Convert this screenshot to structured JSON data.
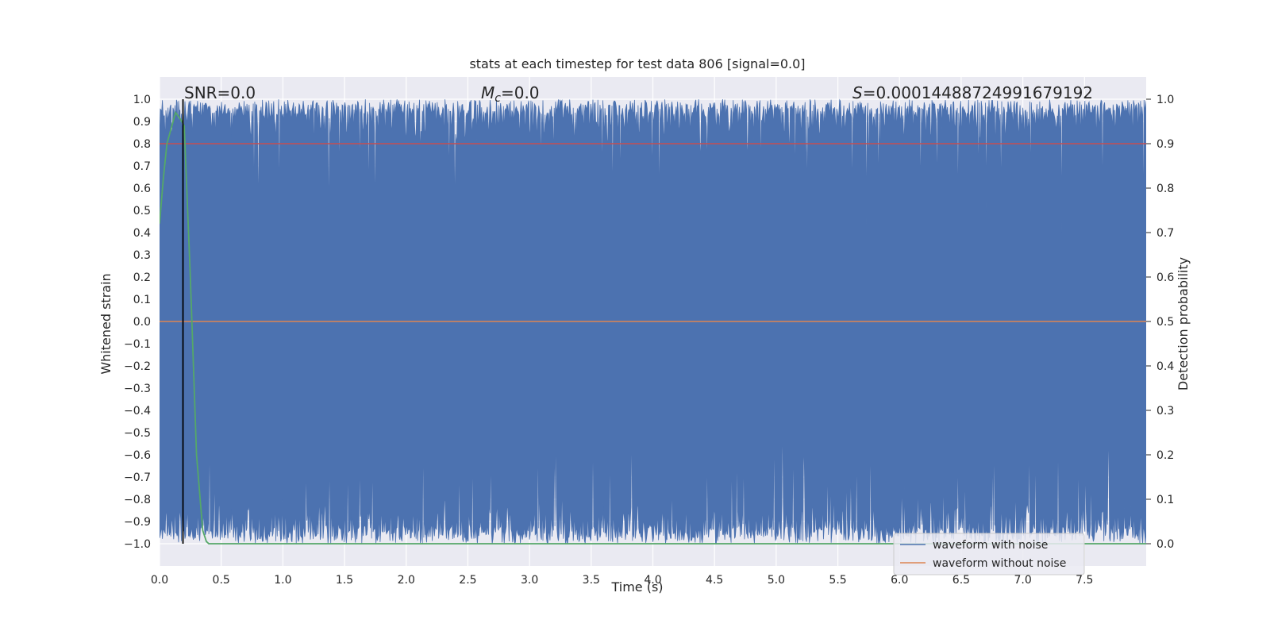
{
  "chart_data": {
    "type": "line",
    "title": "stats at each timestep for test data 806 [signal=0.0]",
    "xlabel": "Time (s)",
    "ylabel_left": "Whitened strain",
    "ylabel_right": "Detection probability",
    "xlim": [
      0.0,
      8.0
    ],
    "ylim_left": [
      -1.1,
      1.1
    ],
    "ylim_right": [
      -0.05,
      1.05
    ],
    "x_ticks": [
      "0.0",
      "0.5",
      "1.0",
      "1.5",
      "2.0",
      "2.5",
      "3.0",
      "3.5",
      "4.0",
      "4.5",
      "5.0",
      "5.5",
      "6.0",
      "6.5",
      "7.0",
      "7.5"
    ],
    "y_ticks_left": [
      "1.0",
      "0.9",
      "0.8",
      "0.7",
      "0.6",
      "0.5",
      "0.4",
      "0.3",
      "0.2",
      "0.1",
      "0.0",
      "−0.1",
      "−0.2",
      "−0.3",
      "−0.4",
      "−0.5",
      "−0.6",
      "−0.7",
      "−0.8",
      "−0.9",
      "−1.0"
    ],
    "y_ticks_right": [
      "1.0",
      "0.9",
      "0.8",
      "0.7",
      "0.6",
      "0.5",
      "0.4",
      "0.3",
      "0.2",
      "0.1",
      "0.0"
    ],
    "grid": true,
    "legend_position": "lower-right",
    "annotations": {
      "snr": "SNR=0.0",
      "mc_symbol": "M",
      "mc_sub": "c",
      "mc_value": "=0.0",
      "s_symbol": "S",
      "s_value": "=0.00014488724991679192"
    },
    "series": [
      {
        "name": "waveform with noise",
        "color": "#4c72b0",
        "description": "noise fills approximately -1.0 to 1.0 over 0-8 s"
      },
      {
        "name": "waveform without noise",
        "color": "#dd8452",
        "constant_value": 0.0
      }
    ],
    "threshold": {
      "value_right_axis": 0.9,
      "color": "#c44e52"
    },
    "probability_curve": {
      "color": "#55a868",
      "x": [
        0.0,
        0.03,
        0.06,
        0.1,
        0.13,
        0.17,
        0.2,
        0.25,
        0.3,
        0.35,
        0.38,
        0.4,
        1.0,
        8.0
      ],
      "y": [
        0.72,
        0.82,
        0.9,
        0.94,
        0.97,
        0.955,
        0.94,
        0.6,
        0.2,
        0.03,
        0.005,
        0.0,
        0.0,
        0.0
      ]
    },
    "marker_time": 0.19,
    "colors": {
      "background": "#eaeaf2",
      "grid": "#ffffff",
      "marker": "#000000"
    }
  }
}
